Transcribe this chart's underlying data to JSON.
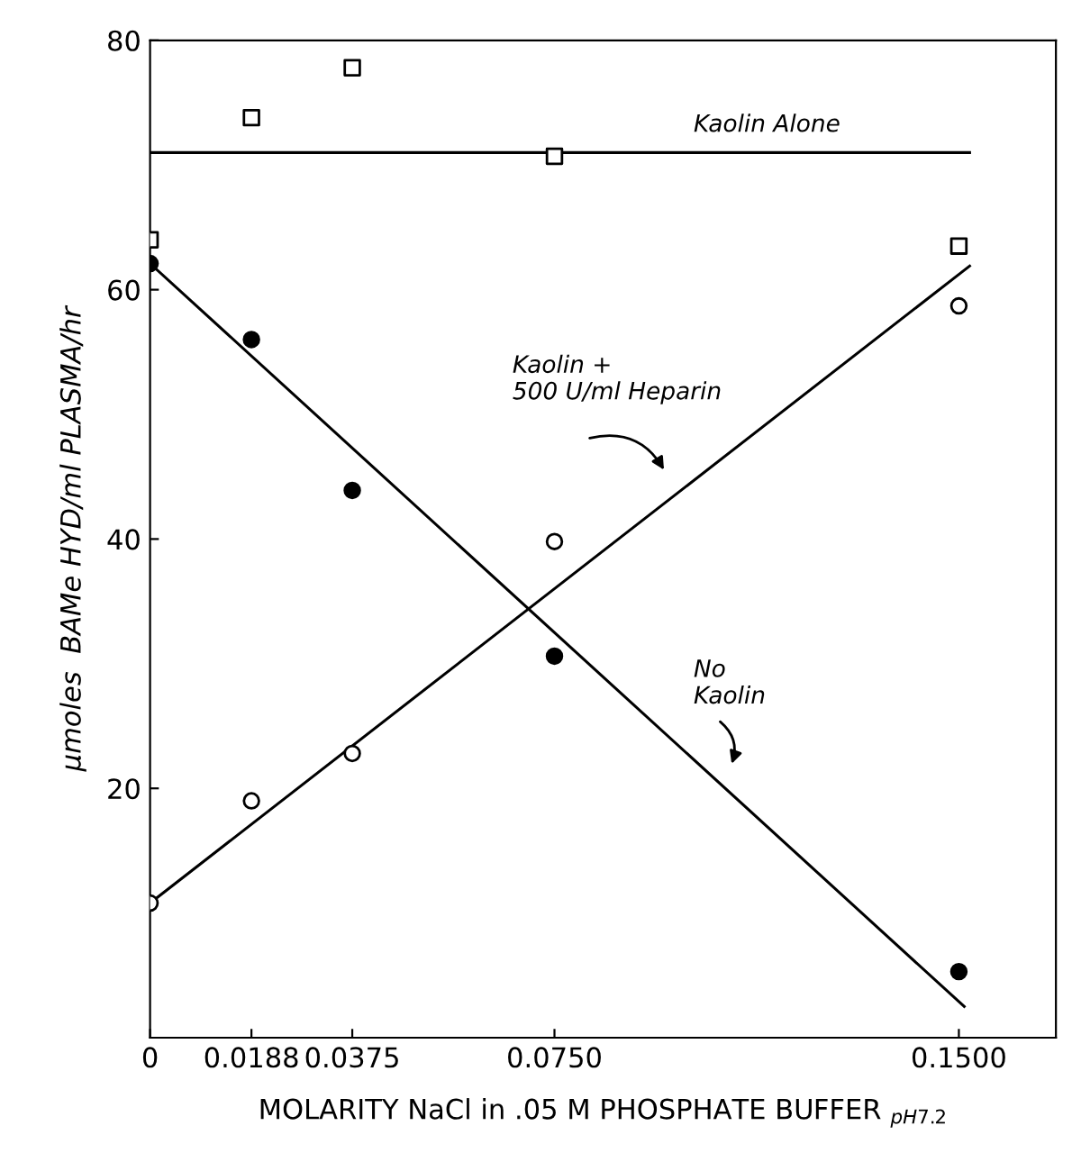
{
  "chart_data": {
    "type": "scatter",
    "xlabel": "MOLARITY NaCl in .05 M PHOSPHATE BUFFER $_{pH7.2}$",
    "ylabel": "μmoles  BAMe HYD/ml PLASMA/hr",
    "x": [
      0,
      0.0188,
      0.0375,
      0.075,
      0.15
    ],
    "series": [
      {
        "marker": "square",
        "color": "#ffffff",
        "values": [
          64.0,
          73.8,
          77.8,
          70.7,
          63.5
        ]
      },
      {
        "marker": "circle",
        "color": "#000000",
        "values": [
          62.1,
          56.0,
          43.9,
          30.6,
          5.3
        ]
      },
      {
        "marker": "circle",
        "color": "#ffffff",
        "values": [
          10.8,
          19.0,
          22.8,
          39.8,
          58.7
        ]
      },
      {
        "type": "line",
        "color": "#000000",
        "line_style": "solid",
        "x": [
          0,
          0.152
        ],
        "values": [
          71.0,
          71.0
        ]
      },
      {
        "type": "line",
        "color": "#000000",
        "line_style": "solid",
        "x": [
          0,
          0.151
        ],
        "values": [
          62.1,
          2.5
        ]
      },
      {
        "type": "line",
        "color": "#000000",
        "line_style": "solid",
        "x": [
          0,
          0.152
        ],
        "values": [
          10.8,
          61.9
        ]
      }
    ],
    "annotations": [
      "Kaolin Alone",
      "Kaolin +\n500 U/ml Heparin",
      "No\nKaolin"
    ],
    "xlim": [
      0,
      0.168
    ],
    "ylim": [
      0,
      80
    ],
    "xticks": [
      0,
      {
        "value": 0.0188,
        "label": "0.0188"
      },
      {
        "value": 0.0375,
        "label": "0.0375"
      },
      {
        "value": 0.075,
        "label": "0.0750"
      },
      {
        "value": 0.15,
        "label": "0.1500"
      }
    ],
    "yticks": [
      20,
      40,
      60,
      80
    ],
    "grid": false,
    "legend": false
  }
}
